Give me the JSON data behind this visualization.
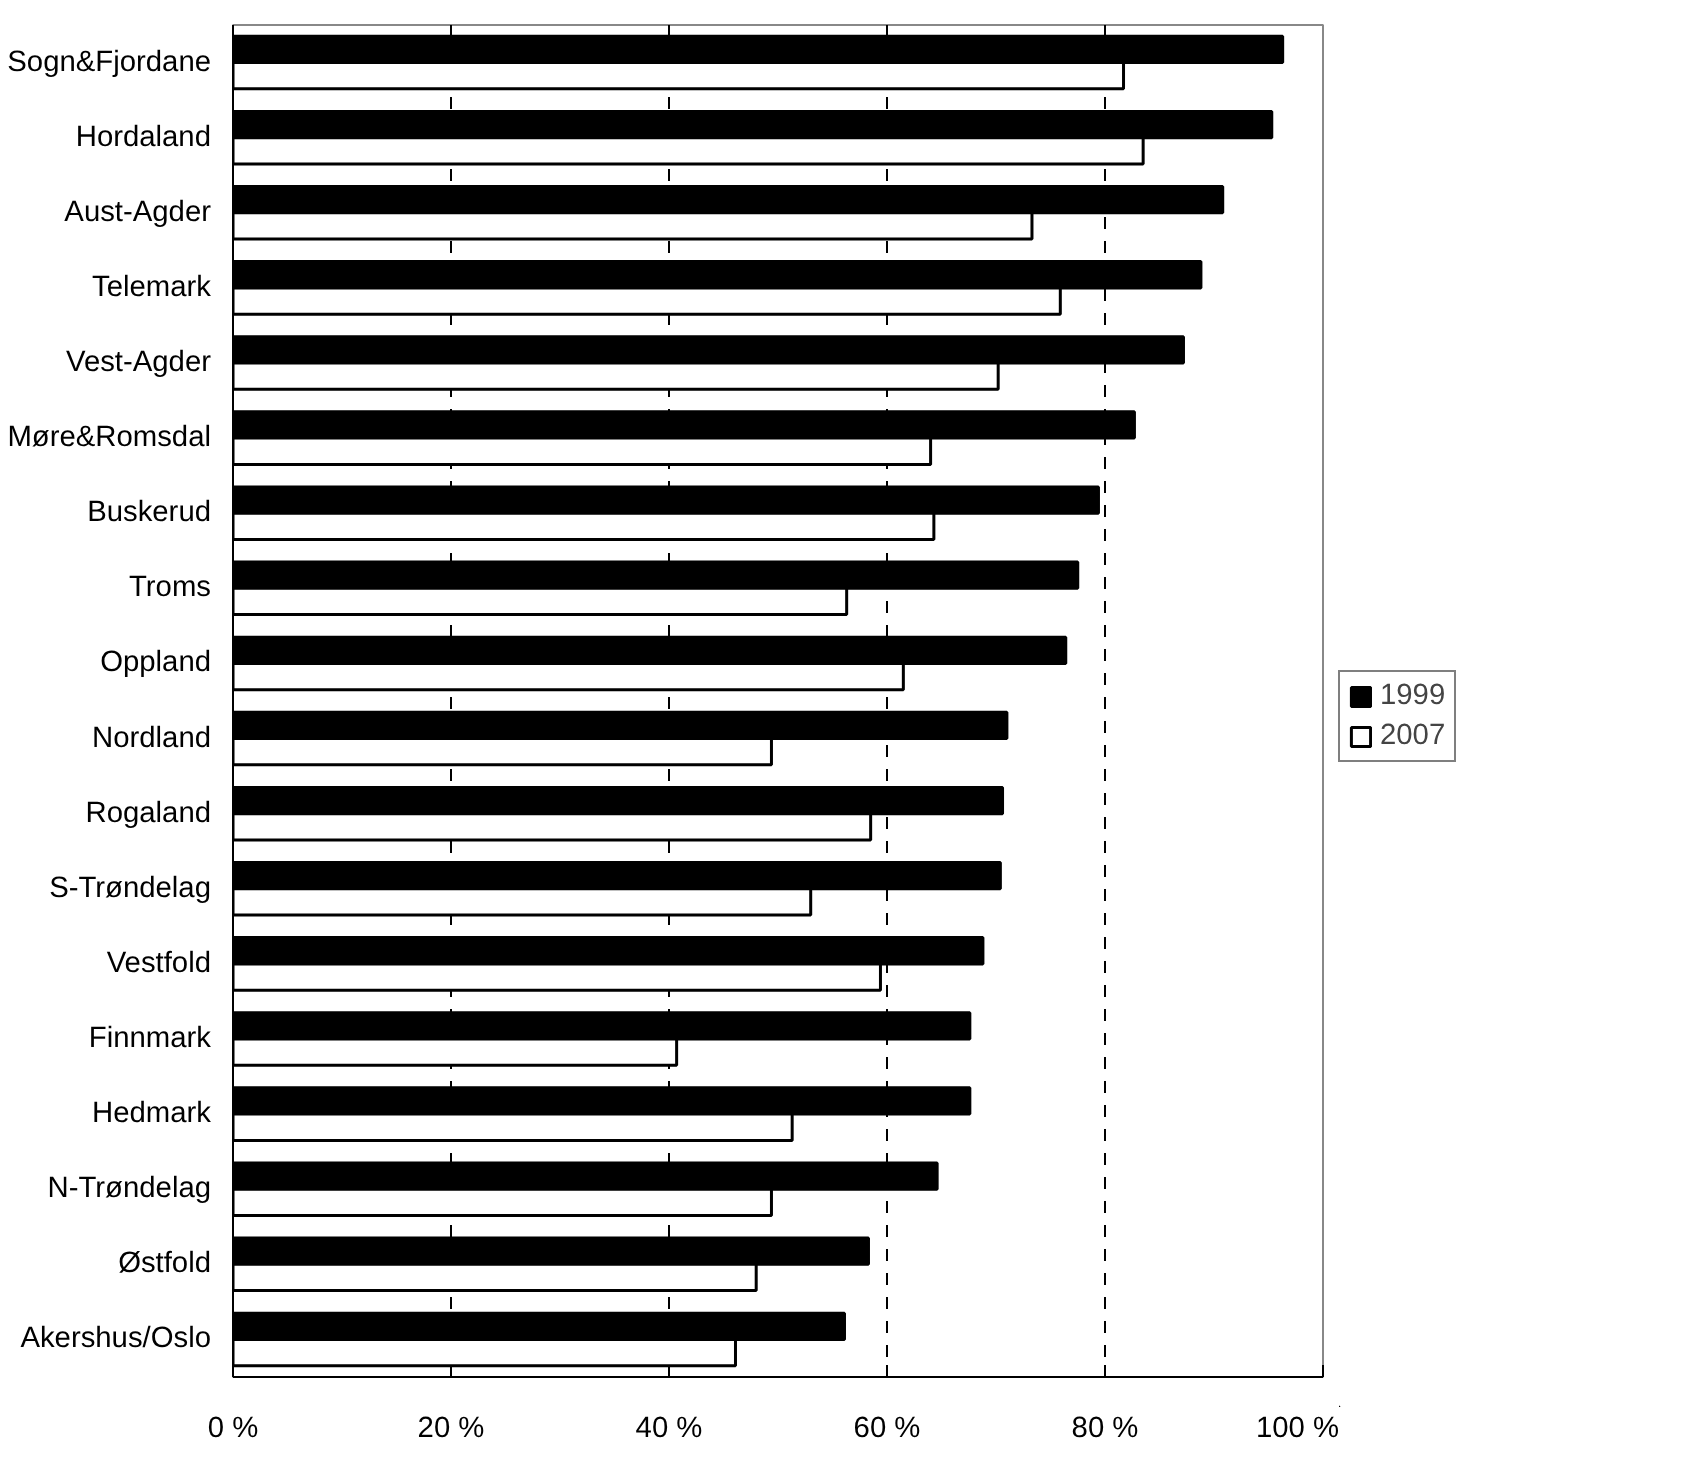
{
  "chart_data": {
    "type": "bar",
    "orientation": "horizontal",
    "categories": [
      "Sogn&Fjordane",
      "Hordaland",
      "Aust-Agder",
      "Telemark",
      "Vest-Agder",
      "Møre&Romsdal",
      "Buskerud",
      "Troms",
      "Oppland",
      "Nordland",
      "Rogaland",
      "S-Trøndelag",
      "Vestfold",
      "Finnmark",
      "Hedmark",
      "N-Trøndelag",
      "Østfold",
      "Akershus/Oslo"
    ],
    "series": [
      {
        "name": "1999",
        "color": "#000000",
        "values": [
          96.3,
          95.3,
          90.8,
          88.8,
          87.2,
          82.7,
          79.4,
          77.5,
          76.4,
          71.0,
          70.6,
          70.4,
          68.8,
          67.6,
          67.6,
          64.6,
          58.3,
          56.1
        ]
      },
      {
        "name": "2007",
        "color": "#ffffff",
        "values": [
          81.7,
          83.5,
          73.3,
          75.9,
          70.2,
          64.0,
          64.3,
          56.3,
          61.5,
          49.4,
          58.5,
          53.0,
          59.4,
          40.7,
          51.3,
          49.4,
          48.0,
          46.1
        ]
      }
    ],
    "xlim": [
      0,
      100
    ],
    "xticks": [
      {
        "value": 0,
        "label": "0 %"
      },
      {
        "value": 20,
        "label": "20 %"
      },
      {
        "value": 40,
        "label": "40 %"
      },
      {
        "value": 60,
        "label": "60 %"
      },
      {
        "value": 80,
        "label": "80 %"
      },
      {
        "value": 100,
        "label": "100 %"
      }
    ],
    "grid": "x",
    "legend": "right"
  }
}
